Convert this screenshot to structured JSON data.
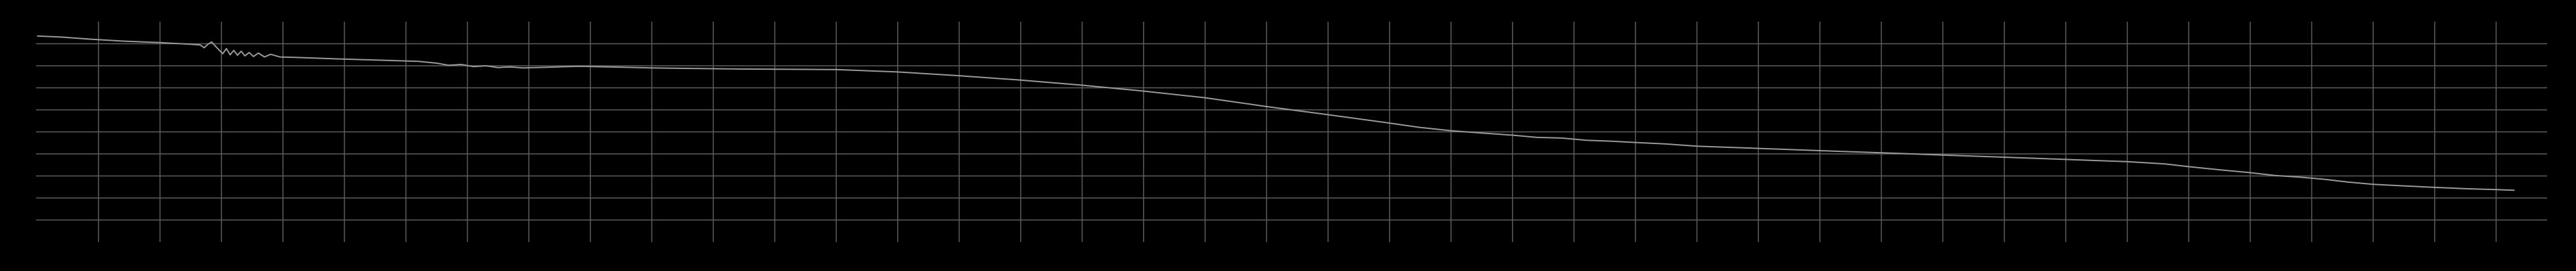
{
  "chart_data": {
    "type": "line",
    "title": "",
    "xlabel": "",
    "ylabel": "",
    "grid": true,
    "legend": "none",
    "xlim": [
      0,
      40.5
    ],
    "ylim": [
      0,
      10
    ],
    "x_grid_step": 1,
    "y_grid_step": 1,
    "series": [
      {
        "points": [
          [
            0,
            9.35
          ],
          [
            0.4,
            9.3
          ],
          [
            0.9,
            9.2
          ],
          [
            1.4,
            9.12
          ],
          [
            2.0,
            9.05
          ],
          [
            2.5,
            8.98
          ],
          [
            2.65,
            8.95
          ],
          [
            2.72,
            8.82
          ],
          [
            2.78,
            8.98
          ],
          [
            2.84,
            9.08
          ],
          [
            2.9,
            8.9
          ],
          [
            2.96,
            8.72
          ],
          [
            3.02,
            8.55
          ],
          [
            3.08,
            8.78
          ],
          [
            3.14,
            8.5
          ],
          [
            3.2,
            8.7
          ],
          [
            3.26,
            8.48
          ],
          [
            3.32,
            8.66
          ],
          [
            3.38,
            8.45
          ],
          [
            3.45,
            8.6
          ],
          [
            3.52,
            8.42
          ],
          [
            3.6,
            8.58
          ],
          [
            3.7,
            8.4
          ],
          [
            3.8,
            8.52
          ],
          [
            3.95,
            8.4
          ],
          [
            4.2,
            8.38
          ],
          [
            4.8,
            8.32
          ],
          [
            5.5,
            8.26
          ],
          [
            6.2,
            8.2
          ],
          [
            6.5,
            8.12
          ],
          [
            6.7,
            8.02
          ],
          [
            6.9,
            8.06
          ],
          [
            7.1,
            7.96
          ],
          [
            7.3,
            8.0
          ],
          [
            7.5,
            7.92
          ],
          [
            7.7,
            7.95
          ],
          [
            7.9,
            7.9
          ],
          [
            8.3,
            7.93
          ],
          [
            8.8,
            7.98
          ],
          [
            10,
            7.9
          ],
          [
            11.5,
            7.85
          ],
          [
            13,
            7.83
          ],
          [
            14,
            7.72
          ],
          [
            15,
            7.55
          ],
          [
            16,
            7.35
          ],
          [
            17,
            7.12
          ],
          [
            18,
            6.85
          ],
          [
            19,
            6.55
          ],
          [
            20,
            6.15
          ],
          [
            21,
            5.78
          ],
          [
            22,
            5.4
          ],
          [
            22.5,
            5.2
          ],
          [
            23,
            5.05
          ],
          [
            23.5,
            4.95
          ],
          [
            24,
            4.85
          ],
          [
            24.4,
            4.75
          ],
          [
            24.8,
            4.72
          ],
          [
            25.2,
            4.62
          ],
          [
            25.6,
            4.58
          ],
          [
            26,
            4.52
          ],
          [
            26.5,
            4.45
          ],
          [
            27,
            4.35
          ],
          [
            28,
            4.25
          ],
          [
            29,
            4.15
          ],
          [
            30,
            4.05
          ],
          [
            31,
            3.95
          ],
          [
            32,
            3.85
          ],
          [
            33,
            3.75
          ],
          [
            34,
            3.65
          ],
          [
            34.6,
            3.55
          ],
          [
            35,
            3.42
          ],
          [
            35.5,
            3.28
          ],
          [
            36,
            3.15
          ],
          [
            36.4,
            3.02
          ],
          [
            36.8,
            2.95
          ],
          [
            37.2,
            2.85
          ],
          [
            37.6,
            2.72
          ],
          [
            38,
            2.62
          ],
          [
            38.5,
            2.55
          ],
          [
            39,
            2.48
          ],
          [
            39.5,
            2.42
          ],
          [
            40,
            2.38
          ],
          [
            40.3,
            2.35
          ]
        ]
      }
    ]
  }
}
